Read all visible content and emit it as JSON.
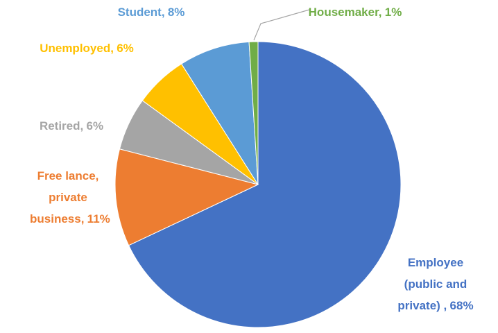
{
  "chart_data": {
    "type": "pie",
    "categories": [
      "Employee (public and private) ,",
      "Free lance, private business,",
      "Retired,",
      "Unemployed,",
      "Student,",
      "Housemaker,"
    ],
    "values": [
      68,
      11,
      6,
      6,
      8,
      1
    ],
    "value_labels": [
      "68%",
      "11%",
      "6%",
      "6%",
      "8%",
      "1%"
    ],
    "colors": [
      "#4472c4",
      "#ed7d31",
      "#a5a5a5",
      "#ffc000",
      "#5b9bd5",
      "#70ad47"
    ]
  }
}
